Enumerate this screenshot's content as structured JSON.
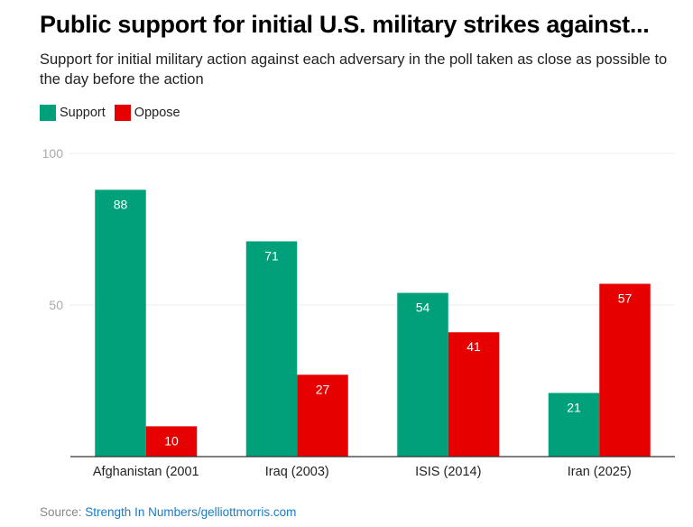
{
  "chart_data": {
    "type": "bar",
    "title": "Public support for initial U.S. military strikes against...",
    "subtitle": "Support for initial military action against each adversary in the poll taken as close as possible to the day before the action",
    "categories": [
      "Afghanistan (2001",
      "Iraq (2003)",
      "ISIS (2014)",
      "Iran (2025)"
    ],
    "series": [
      {
        "name": "Support",
        "color": "#00a07a",
        "values": [
          88,
          71,
          54,
          21
        ]
      },
      {
        "name": "Oppose",
        "color": "#e60000",
        "values": [
          10,
          27,
          41,
          57
        ]
      }
    ],
    "xlabel": "",
    "ylabel": "",
    "ylim": [
      0,
      100
    ],
    "yticks": [
      50,
      100
    ],
    "grid": true,
    "legend": "top-left"
  },
  "source": {
    "label": "Source: ",
    "link_text": "Strength In Numbers/gelliottmorris.com"
  }
}
